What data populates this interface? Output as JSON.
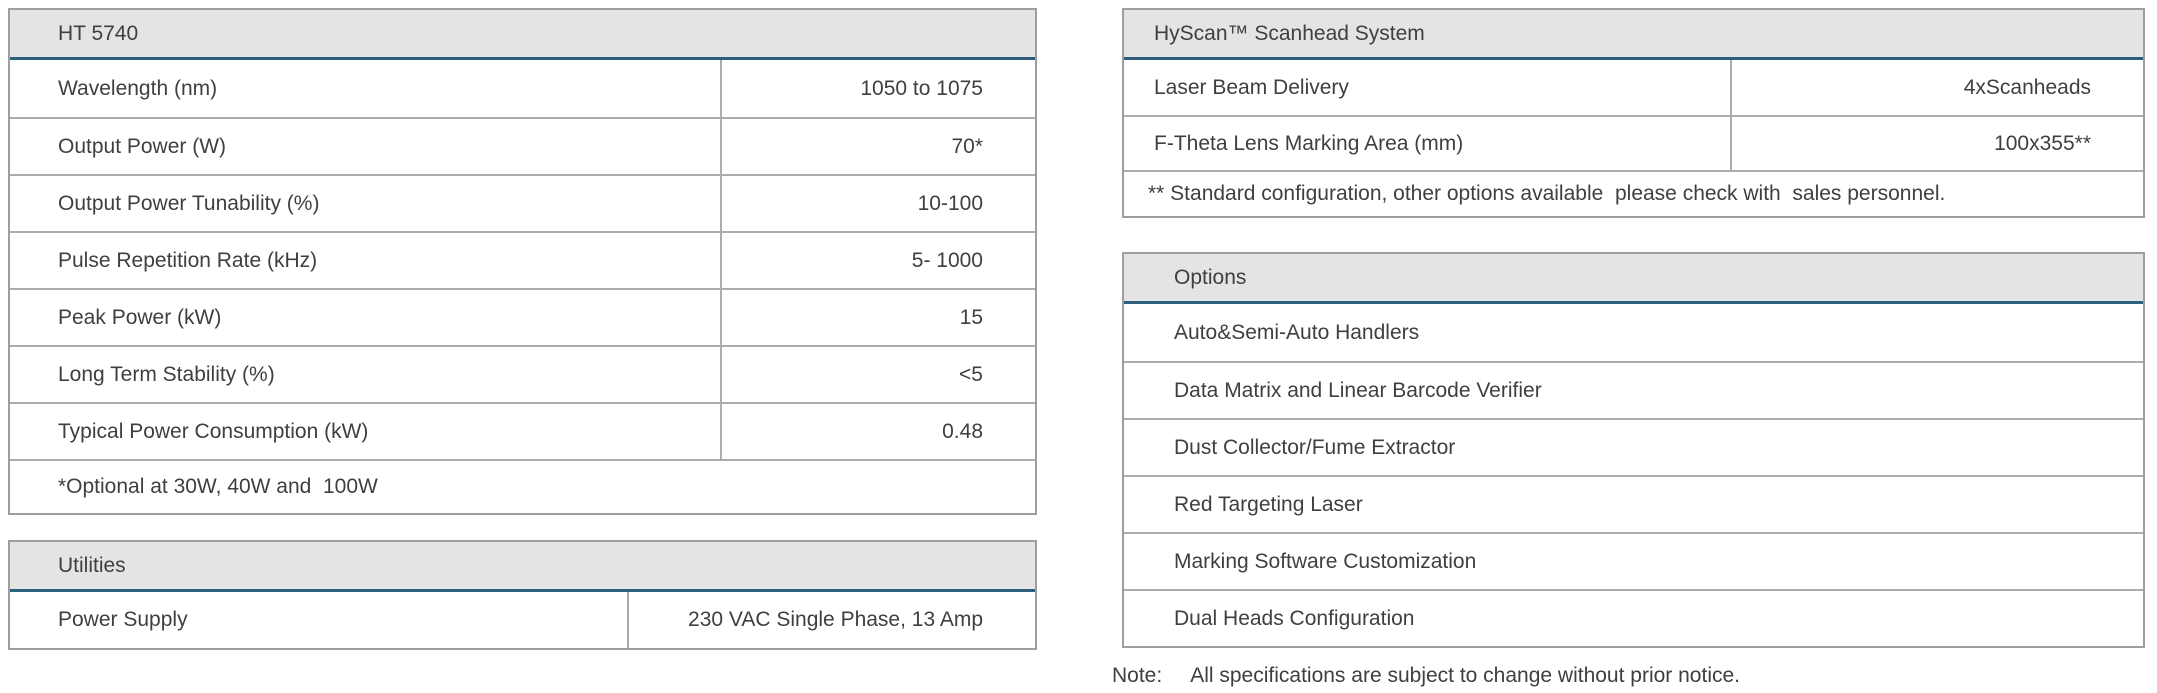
{
  "colors": {
    "accent": "#2e5f7d",
    "header_bg": "#e4e4e2",
    "border": "#a6a6a6",
    "text": "#3f3f3f"
  },
  "left": {
    "spec": {
      "title": "HT 5740",
      "rows": [
        {
          "label": "Wavelength (nm)",
          "value": "1050 to 1075"
        },
        {
          "label": "Output Power (W)",
          "value": "70*"
        },
        {
          "label": "Output Power Tunability (%)",
          "value": "10-100"
        },
        {
          "label": "Pulse Repetition Rate (kHz)",
          "value": "5- 1000"
        },
        {
          "label": "Peak Power (kW)",
          "value": "15"
        },
        {
          "label": "Long Term Stability (%)",
          "value": "<5"
        },
        {
          "label": "Typical Power Consumption (kW)",
          "value": "0.48"
        }
      ],
      "footnote": "*Optional at 30W, 40W and  100W"
    },
    "utilities": {
      "title": "Utilities",
      "rows": [
        {
          "label": "Power Supply",
          "value": "230 VAC Single Phase, 13 Amp"
        }
      ]
    }
  },
  "right": {
    "scanhead": {
      "title": "HyScan™ Scanhead System",
      "rows": [
        {
          "label": "Laser Beam Delivery",
          "value": "4xScanheads"
        },
        {
          "label": "F-Theta Lens Marking Area (mm)",
          "value": "100x355**"
        }
      ],
      "footnote": "** Standard configuration, other options available  please check with  sales personnel."
    },
    "options": {
      "title": "Options",
      "items": [
        "Auto&Semi-Auto Handlers",
        "Data Matrix and Linear Barcode Verifier",
        "Dust Collector/Fume Extractor",
        "Red Targeting Laser",
        "Marking Software Customization",
        "Dual Heads Configuration"
      ]
    }
  },
  "note": {
    "label": "Note:",
    "text": "All specifications are subject to change without prior notice."
  }
}
